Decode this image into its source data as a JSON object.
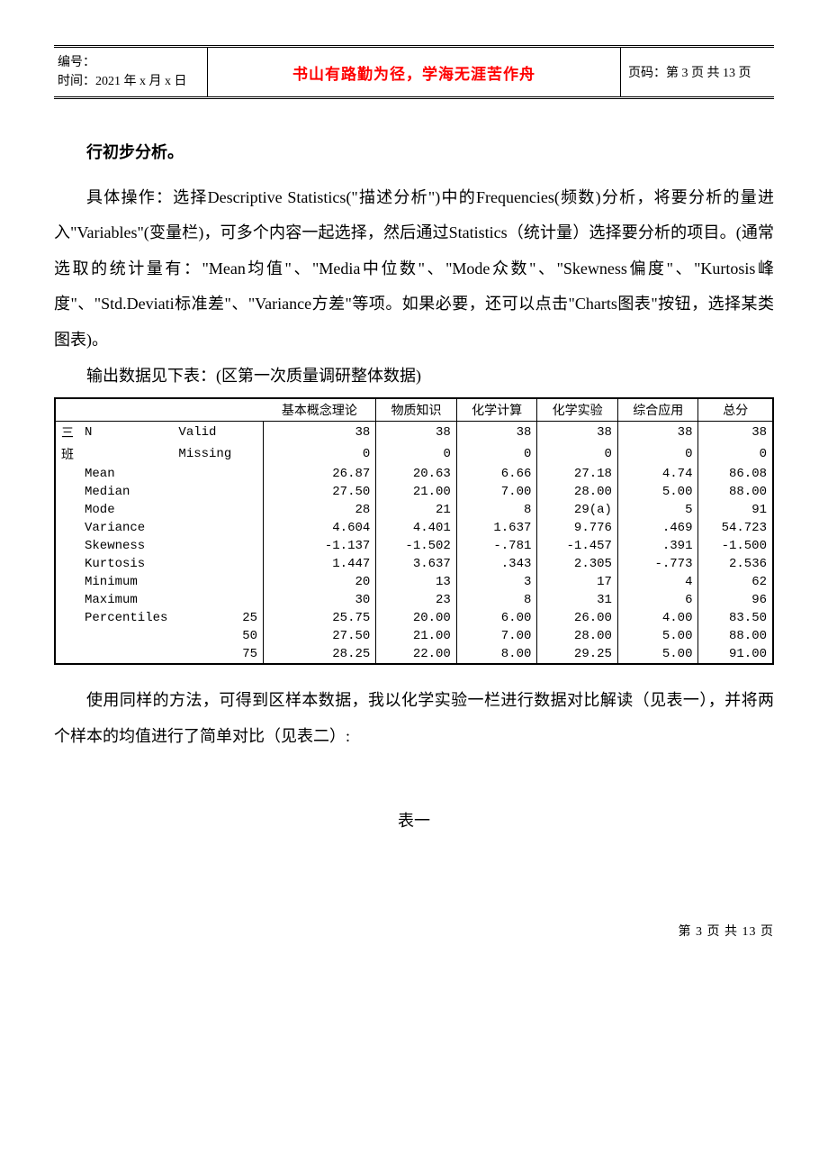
{
  "header": {
    "left_line1": "编号：",
    "left_line2": "时间：2021 年 x 月 x 日",
    "mid": "书山有路勤为径，学海无涯苦作舟",
    "right": "页码：第 3 页 共 13 页",
    "mid_color": "#ff0000"
  },
  "heading": "行初步分析。",
  "para1": "具体操作：选择Descriptive Statistics(\"描述分析\")中的Frequencies(频数)分析，将要分析的量进入\"Variables\"(变量栏)，可多个内容一起选择，然后通过Statistics（统计量）选择要分析的项目。(通常选取的统计量有：\"Mean均值\"、\"Media中位数\"、\"Mode众数\"、\"Skewness偏度\"、\"Kurtosis峰度\"、\"Std.Deviati标准差\"、\"Variance方差\"等项。如果必要，还可以点击\"Charts图表\"按钮，选择某类图表)。",
  "para2": "输出数据见下表：(区第一次质量调研整体数据)",
  "table": {
    "type": "table",
    "row_header_col1": "三班",
    "columns": [
      "基本概念理论",
      "物质知识",
      "化学计算",
      "化学实验",
      "综合应用",
      "总分"
    ],
    "rows": [
      {
        "l1": "N",
        "l2": "Valid",
        "l3": "",
        "v": [
          "38",
          "38",
          "38",
          "38",
          "38",
          "38"
        ]
      },
      {
        "l1": "",
        "l2": "Missing",
        "l3": "",
        "v": [
          "0",
          "0",
          "0",
          "0",
          "0",
          "0"
        ]
      },
      {
        "l1": "Mean",
        "l2": "",
        "l3": "",
        "v": [
          "26.87",
          "20.63",
          "6.66",
          "27.18",
          "4.74",
          "86.08"
        ]
      },
      {
        "l1": "Median",
        "l2": "",
        "l3": "",
        "v": [
          "27.50",
          "21.00",
          "7.00",
          "28.00",
          "5.00",
          "88.00"
        ]
      },
      {
        "l1": "Mode",
        "l2": "",
        "l3": "",
        "v": [
          "28",
          "21",
          "8",
          "29(a)",
          "5",
          "91"
        ]
      },
      {
        "l1": "Variance",
        "l2": "",
        "l3": "",
        "v": [
          "4.604",
          "4.401",
          "1.637",
          "9.776",
          ".469",
          "54.723"
        ]
      },
      {
        "l1": "Skewness",
        "l2": "",
        "l3": "",
        "v": [
          "-1.137",
          "-1.502",
          "-.781",
          "-1.457",
          ".391",
          "-1.500"
        ]
      },
      {
        "l1": "Kurtosis",
        "l2": "",
        "l3": "",
        "v": [
          "1.447",
          "3.637",
          ".343",
          "2.305",
          "-.773",
          "2.536"
        ]
      },
      {
        "l1": "Minimum",
        "l2": "",
        "l3": "",
        "v": [
          "20",
          "13",
          "3",
          "17",
          "4",
          "62"
        ]
      },
      {
        "l1": "Maximum",
        "l2": "",
        "l3": "",
        "v": [
          "30",
          "23",
          "8",
          "31",
          "6",
          "96"
        ]
      },
      {
        "l1": "Percentiles",
        "l2": "",
        "l3": "25",
        "v": [
          "25.75",
          "20.00",
          "6.00",
          "26.00",
          "4.00",
          "83.50"
        ]
      },
      {
        "l1": "",
        "l2": "",
        "l3": "50",
        "v": [
          "27.50",
          "21.00",
          "7.00",
          "28.00",
          "5.00",
          "88.00"
        ]
      },
      {
        "l1": "",
        "l2": "",
        "l3": "75",
        "v": [
          "28.25",
          "22.00",
          "8.00",
          "29.25",
          "5.00",
          "91.00"
        ]
      }
    ],
    "border_color": "#000000",
    "font": "Courier New",
    "font_size_pt": 11
  },
  "para3": "使用同样的方法，可得到区样本数据，我以化学实验一栏进行数据对比解读（见表一），并将两个样本的均值进行了简单对比（见表二）:",
  "caption": "表一",
  "footer": "第 3 页 共 13 页"
}
